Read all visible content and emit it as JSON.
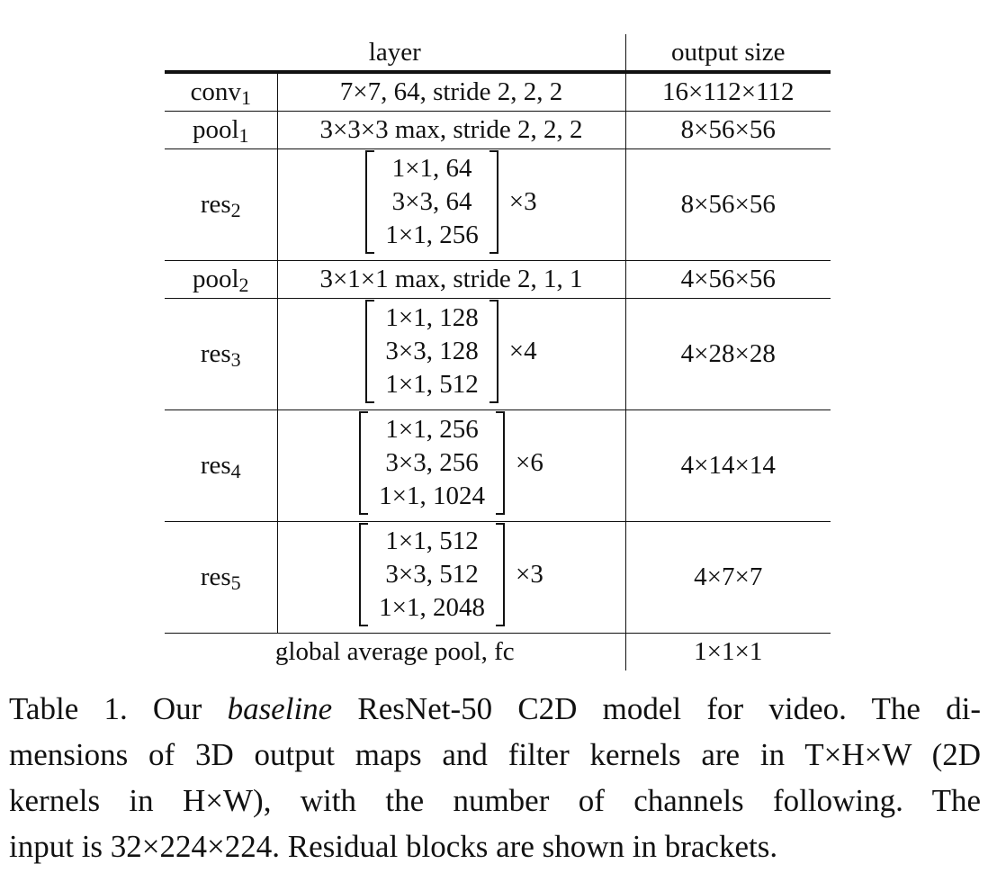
{
  "table": {
    "headers": {
      "layer": "layer",
      "output": "output size"
    },
    "rows": [
      {
        "name": "conv",
        "sub": "1",
        "spec": "7×7, 64, stride 2, 2, 2",
        "output": "16×112×112"
      },
      {
        "name": "pool",
        "sub": "1",
        "spec": "3×3×3 max, stride 2, 2, 2",
        "output": "8×56×56"
      },
      {
        "name": "res",
        "sub": "2",
        "lines": [
          "1×1, 64",
          "3×3, 64",
          "1×1, 256"
        ],
        "repeat": "×3",
        "output": "8×56×56"
      },
      {
        "name": "pool",
        "sub": "2",
        "spec": "3×1×1 max, stride 2, 1, 1",
        "output": "4×56×56"
      },
      {
        "name": "res",
        "sub": "3",
        "lines": [
          "1×1, 128",
          "3×3, 128",
          "1×1, 512"
        ],
        "repeat": "×4",
        "output": "4×28×28"
      },
      {
        "name": "res",
        "sub": "4",
        "lines": [
          "1×1, 256",
          "3×3, 256",
          "1×1, 1024"
        ],
        "repeat": "×6",
        "output": "4×14×14"
      },
      {
        "name": "res",
        "sub": "5",
        "lines": [
          "1×1, 512",
          "3×3, 512",
          "1×1, 2048"
        ],
        "repeat": "×3",
        "output": "4×7×7"
      }
    ],
    "final": {
      "label": "global average pool, fc",
      "output": "1×1×1"
    }
  },
  "caption": {
    "prefix": "Table 1. Our ",
    "emph": "baseline",
    "line1_rest": " ResNet-50 C2D model for video. The di-",
    "line2": "mensions of 3D output maps and filter kernels are in T×H×W (2D",
    "line3": "kernels in H×W), with the number of channels following. The",
    "line4": "input is 32×224×224. Residual blocks are shown in brackets."
  }
}
